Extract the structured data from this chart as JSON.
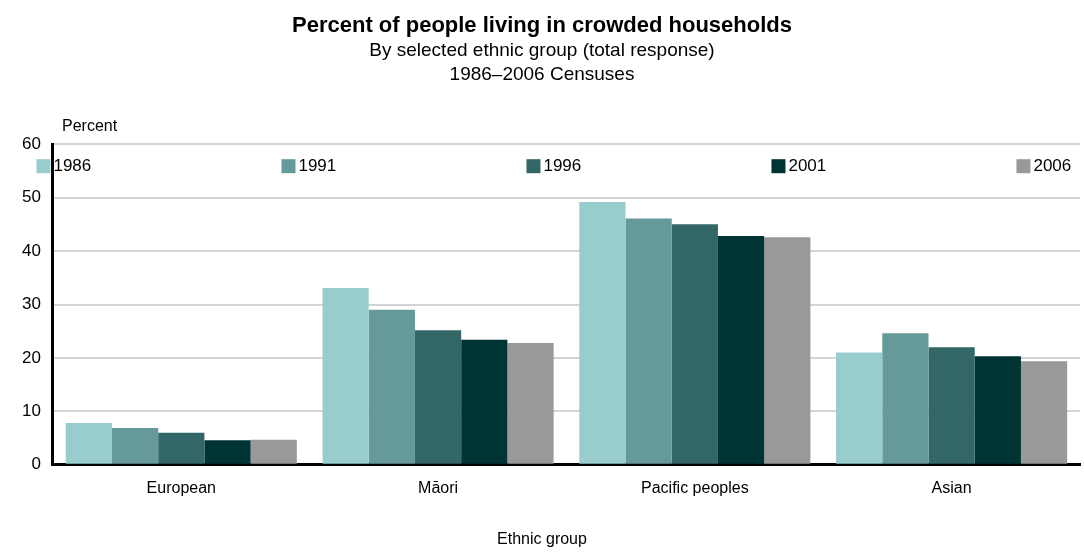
{
  "chart_data": {
    "type": "bar",
    "title": "Percent of people living in crowded households",
    "subtitle": "By selected ethnic group (total response)\n1986–2006 Censuses",
    "xlabel": "Ethnic group",
    "ylabel": "Percent",
    "categories": [
      "European",
      "Māori",
      "Pacific peoples",
      "Asian"
    ],
    "series": [
      {
        "name": "1986",
        "color": "#99cccc",
        "values": [
          7.8,
          33.1,
          49.2,
          21.0
        ]
      },
      {
        "name": "1991",
        "color": "#669999",
        "values": [
          6.9,
          29.0,
          46.1,
          24.6
        ]
      },
      {
        "name": "1996",
        "color": "#336666",
        "values": [
          6.0,
          25.2,
          45.0,
          22.0
        ]
      },
      {
        "name": "2001",
        "color": "#003333",
        "values": [
          4.6,
          23.4,
          42.8,
          20.3
        ]
      },
      {
        "name": "2006",
        "color": "#999999",
        "values": [
          4.7,
          22.8,
          42.6,
          19.4
        ]
      }
    ],
    "ylim": [
      0,
      60
    ],
    "yticks": [
      0,
      10,
      20,
      30,
      40,
      50,
      60
    ],
    "grid": "y",
    "legend": "top"
  }
}
